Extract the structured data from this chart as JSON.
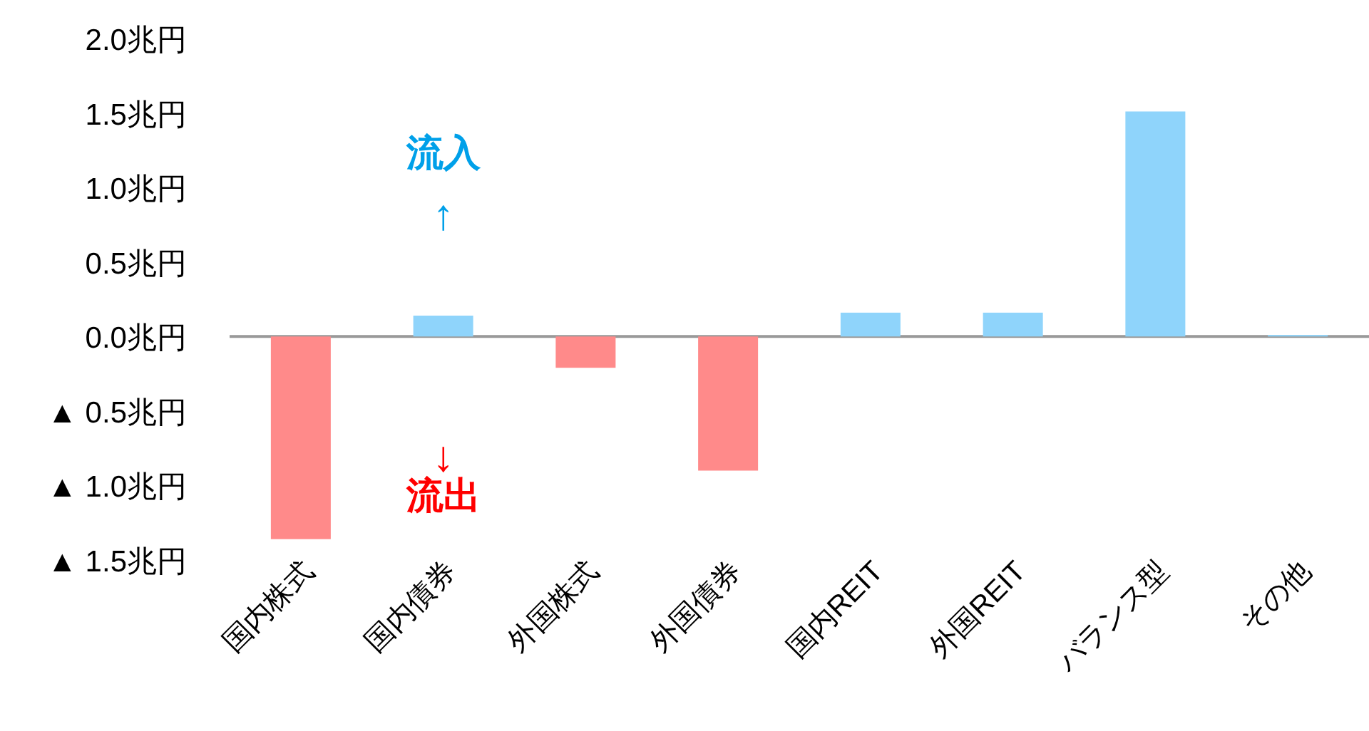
{
  "chart_data": {
    "type": "bar",
    "categories": [
      "国内株式",
      "国内債券",
      "外国株式",
      "外国債券",
      "国内REIT",
      "外国REIT",
      "バランス型",
      "その他"
    ],
    "values": [
      -1.36,
      0.14,
      -0.21,
      -0.9,
      0.16,
      0.16,
      1.51,
      0.01
    ],
    "colors": [
      "#ff8a8a",
      "#8fd4fb",
      "#ff8a8a",
      "#ff8a8a",
      "#8fd4fb",
      "#8fd4fb",
      "#8fd4fb",
      "#8fd4fb"
    ],
    "ylim": [
      -1.5,
      2.0
    ],
    "yticks": [
      {
        "value": 2.0,
        "label": "2.0兆円"
      },
      {
        "value": 1.5,
        "label": "1.5兆円"
      },
      {
        "value": 1.0,
        "label": "1.0兆円"
      },
      {
        "value": 0.5,
        "label": "0.5兆円"
      },
      {
        "value": 0,
        "label": "0.0兆円"
      },
      {
        "value": -0.5,
        "label": "▲ 0.5兆円"
      },
      {
        "value": -1.0,
        "label": "▲ 1.0兆円"
      },
      {
        "value": -1.5,
        "label": "▲ 1.5兆円"
      }
    ],
    "annotations": [
      "流入",
      "↑",
      "↓",
      "流出"
    ]
  }
}
